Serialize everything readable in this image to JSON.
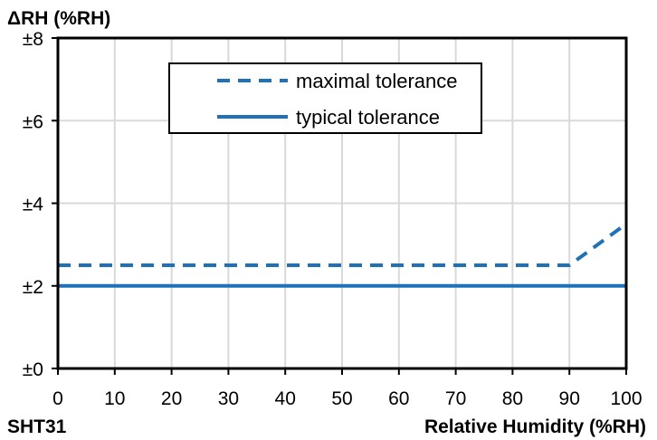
{
  "chart_data": {
    "type": "line",
    "ylabel": "ΔRH (%RH)",
    "xlabel": "Relative Humidity (%RH)",
    "corner_label": "SHT31",
    "xlim": [
      0,
      100
    ],
    "ylim": [
      0,
      8
    ],
    "x_ticks": [
      0,
      10,
      20,
      30,
      40,
      50,
      60,
      70,
      80,
      90,
      100
    ],
    "x_tick_labels": [
      "0",
      "10",
      "20",
      "30",
      "40",
      "50",
      "60",
      "70",
      "80",
      "90",
      "100"
    ],
    "y_ticks": [
      0,
      2,
      4,
      6,
      8
    ],
    "y_tick_labels": [
      "±0",
      "±2",
      "±4",
      "±6",
      "±8"
    ],
    "grid": true,
    "legend_position": "top-center",
    "series_color": "#1f72b8",
    "series": [
      {
        "name": "maximal tolerance",
        "style": "dashed",
        "x": [
          0,
          90,
          100
        ],
        "y": [
          2.5,
          2.5,
          3.5
        ]
      },
      {
        "name": "typical tolerance",
        "style": "solid",
        "x": [
          0,
          100
        ],
        "y": [
          2,
          2
        ]
      }
    ]
  }
}
